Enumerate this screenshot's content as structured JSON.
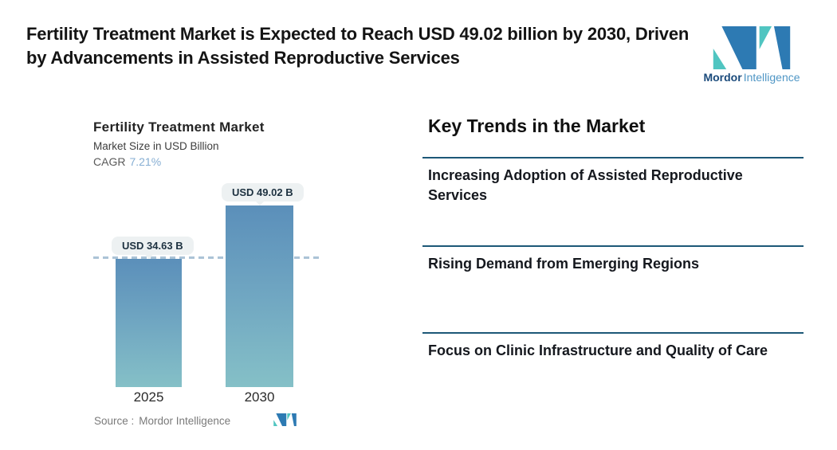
{
  "header": {
    "title": "Fertility Treatment Market is Expected to Reach USD 49.02 billion by 2030, Driven by Advancements in Assisted Reproductive Services",
    "brand": {
      "name_bold": "Mordor",
      "name_light": "Intelligence"
    }
  },
  "chart": {
    "title": "Fertility Treatment Market",
    "subtitle": "Market Size in USD Billion",
    "cagr_label": "CAGR",
    "cagr_value": "7.21%",
    "source_label": "Source :",
    "source_value": "Mordor Intelligence"
  },
  "chart_data": {
    "type": "bar",
    "title": "Fertility Treatment Market",
    "ylabel": "Market Size in USD Billion",
    "categories": [
      "2025",
      "2030"
    ],
    "values": [
      34.63,
      49.02
    ],
    "bar_labels": [
      "USD 34.63 B",
      "USD 49.02 B"
    ],
    "cagr": "7.21%",
    "reference_line": 34.63,
    "ylim": [
      0,
      52
    ],
    "grid": false,
    "legend": false,
    "bar_gradient_top": "#5b8fba",
    "bar_gradient_bottom": "#85c0c7"
  },
  "trends": {
    "heading": "Key Trends in the Market",
    "items": [
      {
        "label": "Increasing Adoption of Assisted Reproductive Services"
      },
      {
        "label": "Rising Demand from Emerging Regions"
      },
      {
        "label": "Focus on Clinic Infrastructure and Quality of Care"
      }
    ]
  },
  "colors": {
    "divider": "#1d5877",
    "cagr_value": "#86aed3",
    "dashed_line": "#abc3d6",
    "pill_bg": "#edf1f2",
    "brand_teal": "#50c5c1",
    "brand_blue": "#2d7ab3",
    "brand_text_dark": "#1a4a7b",
    "brand_text_light": "#4f96c5"
  }
}
